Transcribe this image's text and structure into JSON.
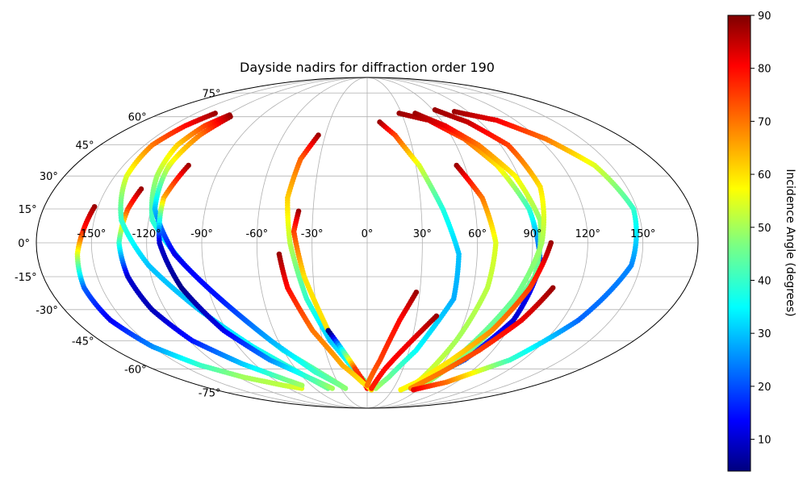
{
  "chart_data": {
    "type": "scatter",
    "projection": "mollweide",
    "title": "Dayside nadirs for diffraction order 190",
    "lon_ticks": [
      "-150°",
      "-120°",
      "-90°",
      "-60°",
      "-30°",
      "0°",
      "30°",
      "60°",
      "90°",
      "120°",
      "150°"
    ],
    "lat_ticks": [
      "75°",
      "60°",
      "45°",
      "30°",
      "15°",
      "0°",
      "-15°",
      "-30°",
      "-45°",
      "-60°",
      "-75°"
    ],
    "lon_grid_deg": [
      -150,
      -120,
      -90,
      -60,
      -30,
      0,
      30,
      60,
      90,
      120,
      150
    ],
    "lat_grid_deg": [
      75,
      60,
      45,
      30,
      15,
      0,
      -15,
      -30,
      -45,
      -60,
      -75
    ],
    "grid": true,
    "colorbar": {
      "label": "Incidence Angle (degrees)",
      "min": 4,
      "max": 90,
      "ticks": [
        "10",
        "20",
        "30",
        "40",
        "50",
        "60",
        "70",
        "80",
        "90"
      ],
      "tick_values": [
        10,
        20,
        30,
        40,
        50,
        60,
        70,
        80,
        90
      ],
      "colormap": "jet"
    },
    "series": [
      {
        "lon": [
          -152,
          -155,
          -158,
          -160,
          -158,
          -150,
          -135,
          -115,
          -90,
          -75
        ],
        "lat": [
          16,
          5,
          -5,
          -20,
          -35,
          -48,
          -58,
          -65,
          -70,
          -72
        ],
        "inc": [
          88,
          78,
          55,
          22,
          12,
          25,
          40,
          50,
          52,
          55
        ]
      },
      {
        "lon": [
          -130,
          -133,
          -135,
          -133,
          -128,
          -118,
          -100,
          -80,
          -70
        ],
        "lat": [
          24,
          15,
          0,
          -15,
          -30,
          -45,
          -57,
          -66,
          -70
        ],
        "inc": [
          88,
          75,
          40,
          10,
          8,
          15,
          30,
          45,
          50
        ]
      },
      {
        "lon": [
          -133,
          -140,
          -145,
          -143,
          -135,
          -120,
          -100,
          -80,
          -60,
          -45
        ],
        "lat": [
          62,
          55,
          45,
          30,
          10,
          -10,
          -30,
          -48,
          -62,
          -72
        ],
        "inc": [
          88,
          80,
          70,
          55,
          40,
          30,
          30,
          35,
          40,
          45
        ]
      },
      {
        "lon": [
          -118,
          -125,
          -128,
          -125,
          -118,
          -100,
          -80,
          -60,
          -40,
          -25
        ],
        "lat": [
          61,
          55,
          45,
          30,
          10,
          -10,
          -30,
          -50,
          -63,
          -72
        ],
        "inc": [
          88,
          75,
          62,
          50,
          40,
          25,
          30,
          38,
          45,
          50
        ]
      },
      {
        "lon": [
          -115,
          -120,
          -122,
          -118,
          -105,
          -85,
          -65,
          -45,
          -25
        ],
        "lat": [
          60,
          50,
          35,
          15,
          -5,
          -25,
          -45,
          -62,
          -72
        ],
        "inc": [
          88,
          70,
          55,
          30,
          12,
          15,
          28,
          40,
          48
        ]
      },
      {
        "lon": [
          -110,
          -115,
          -113,
          -105,
          -92,
          -75,
          -55,
          -40
        ],
        "lat": [
          35,
          20,
          0,
          -20,
          -40,
          -55,
          -65,
          -72
        ],
        "inc": [
          88,
          65,
          10,
          5,
          12,
          25,
          40,
          50
        ]
      },
      {
        "lon": [
          -35,
          -42,
          -45,
          -42,
          -35,
          -25,
          -10,
          5
        ],
        "lat": [
          50,
          38,
          20,
          0,
          -25,
          -45,
          -62,
          -72
        ],
        "inc": [
          88,
          72,
          62,
          52,
          40,
          30,
          38,
          55
        ]
      },
      {
        "lon": [
          -38,
          -40,
          -35,
          -25,
          -10,
          0
        ],
        "lat": [
          14,
          5,
          -15,
          -40,
          -60,
          -72
        ],
        "inc": [
          88,
          75,
          60,
          -1,
          75,
          80
        ]
      },
      {
        "lon": [
          -48,
          -45,
          -35,
          -20,
          -5,
          5
        ],
        "lat": [
          -5,
          -20,
          -40,
          -58,
          -68,
          -73
        ],
        "inc": [
          88,
          80,
          70,
          65,
          60,
          60
        ]
      },
      {
        "lon": [
          10,
          20,
          32,
          42,
          50,
          50,
          35,
          20,
          10
        ],
        "lat": [
          57,
          50,
          35,
          15,
          -5,
          -25,
          -50,
          -65,
          -72
        ],
        "inc": [
          88,
          75,
          55,
          38,
          30,
          28,
          35,
          45,
          50
        ]
      },
      {
        "lon": [
          28,
          20,
          10,
          0
        ],
        "lat": [
          -22,
          -35,
          -55,
          -70
        ],
        "inc": [
          88,
          80,
          75,
          70
        ]
      },
      {
        "lon": [
          42,
          30,
          15,
          5
        ],
        "lat": [
          -33,
          -45,
          -60,
          -72
        ],
        "inc": [
          88,
          82,
          80,
          78
        ]
      },
      {
        "lon": [
          28,
          50,
          68,
          80,
          90,
          95,
          90,
          75,
          55,
          40
        ],
        "lat": [
          62,
          58,
          48,
          35,
          15,
          -10,
          -35,
          -55,
          -68,
          -73
        ],
        "inc": [
          88,
          85,
          72,
          60,
          40,
          15,
          10,
          20,
          40,
          50
        ]
      },
      {
        "lon": [
          42,
          60,
          75,
          88,
          95,
          93,
          80,
          60
        ],
        "lat": [
          62,
          55,
          45,
          30,
          10,
          -15,
          -40,
          -70
        ],
        "inc": [
          88,
          82,
          70,
          58,
          48,
          45,
          45,
          50
        ]
      },
      {
        "lon": [
          55,
          65,
          70,
          68,
          60,
          50
        ],
        "lat": [
          35,
          20,
          0,
          -20,
          -45,
          -70
        ],
        "inc": [
          88,
          70,
          55,
          52,
          50,
          55
        ]
      },
      {
        "lon": [
          62,
          80,
          95,
          100,
          95,
          85,
          70
        ],
        "lat": [
          64,
          57,
          45,
          25,
          0,
          -25,
          -50
        ],
        "inc": [
          88,
          85,
          75,
          60,
          50,
          45,
          45
        ]
      },
      {
        "lon": [
          100,
          92,
          80,
          65,
          50,
          40
        ],
        "lat": [
          0,
          -20,
          -40,
          -55,
          -68,
          -73
        ],
        "inc": [
          88,
          75,
          68,
          60,
          58,
          58
        ]
      },
      {
        "lon": [
          105,
          95,
          80,
          65,
          50
        ],
        "lat": [
          -20,
          -35,
          -50,
          -62,
          -72
        ],
        "inc": [
          88,
          82,
          75,
          70,
          68
        ]
      },
      {
        "lon": [
          78,
          105,
          125,
          140,
          148,
          145,
          130,
          110,
          80,
          55
        ],
        "lat": [
          63,
          58,
          48,
          35,
          15,
          -10,
          -35,
          -55,
          -68,
          -73
        ],
        "inc": [
          88,
          82,
          70,
          55,
          40,
          25,
          22,
          40,
          70,
          82
        ]
      }
    ]
  }
}
